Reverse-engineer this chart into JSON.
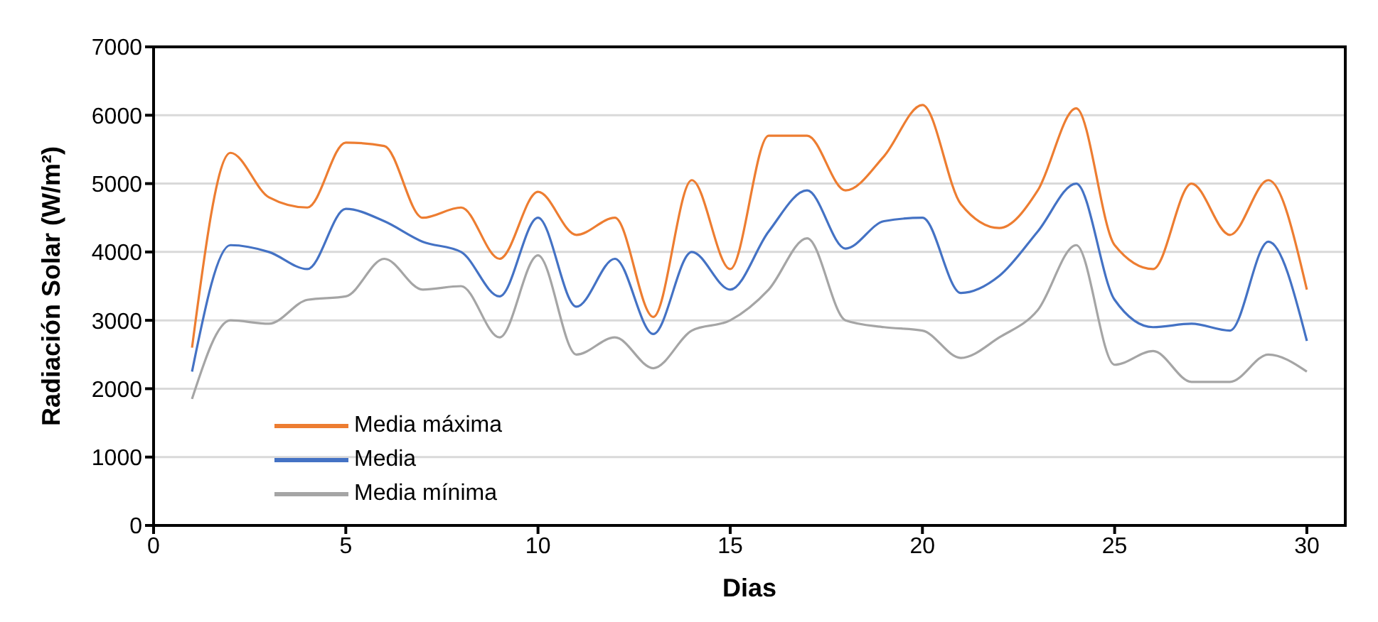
{
  "chart_data": {
    "type": "line",
    "xlabel": "Dias",
    "ylabel": "Radiación  Solar (W/m²)",
    "x": [
      1,
      2,
      3,
      4,
      5,
      6,
      7,
      8,
      9,
      10,
      11,
      12,
      13,
      14,
      15,
      16,
      17,
      18,
      19,
      20,
      21,
      22,
      23,
      24,
      25,
      26,
      27,
      28,
      29,
      30
    ],
    "series": [
      {
        "name": "Media máxima",
        "color": "#ed7d31",
        "values": [
          2600,
          5450,
          4800,
          4650,
          5600,
          5550,
          4500,
          4650,
          3900,
          4880,
          4250,
          4500,
          3050,
          5050,
          3750,
          5700,
          5700,
          4900,
          5400,
          6150,
          4700,
          4350,
          4900,
          6100,
          4100,
          3750,
          5000,
          4250,
          5050,
          3450
        ]
      },
      {
        "name": "Media",
        "color": "#4472c4",
        "values": [
          2250,
          4100,
          4000,
          3750,
          4630,
          4450,
          4150,
          4000,
          3350,
          4500,
          3200,
          3900,
          2800,
          4000,
          3450,
          4300,
          4900,
          4050,
          4450,
          4500,
          3400,
          3650,
          4300,
          5000,
          3300,
          2900,
          2950,
          2850,
          4150,
          2700
        ]
      },
      {
        "name": "Media mínima",
        "color": "#a5a5a5",
        "values": [
          1850,
          3000,
          2950,
          3300,
          3350,
          3900,
          3450,
          3500,
          2750,
          3950,
          2500,
          2750,
          2300,
          2850,
          3000,
          3450,
          4200,
          3000,
          2900,
          2850,
          2450,
          2750,
          3150,
          4100,
          2350,
          2550,
          2100,
          2100,
          2500,
          2250
        ]
      }
    ],
    "xlim": [
      0,
      31
    ],
    "xticks": [
      0,
      5,
      10,
      15,
      20,
      25,
      30
    ],
    "ylim": [
      0,
      7000
    ],
    "yticks": [
      0,
      1000,
      2000,
      3000,
      4000,
      5000,
      6000,
      7000
    ],
    "grid": "y",
    "legend": "bottom left",
    "marker": "none",
    "line_style": "solid"
  }
}
